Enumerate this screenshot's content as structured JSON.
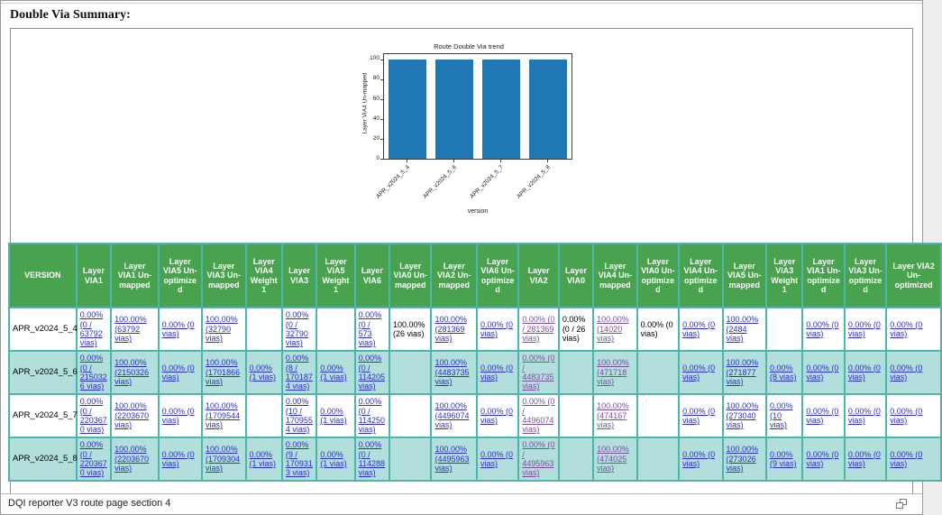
{
  "page": {
    "title": "Double Via Summary:",
    "status_bar": {
      "text": "DQI reporter V3 route page section 4"
    }
  },
  "colors": {
    "header_green": "#49a24d",
    "row_teal": "#b2dfdb",
    "border_teal": "#4db6ac",
    "link_blue": "#2d2dd6",
    "link_visited": "#7e4da1",
    "bar_color": "#1f77b4"
  },
  "chart_data": {
    "type": "bar",
    "title": "Route Double Via trend",
    "xlabel": "version",
    "ylabel": "Layer VIA4 Un-mapped",
    "categories": [
      "APR_v2024_5_4",
      "APR_v2024_5_6",
      "APR_v2024_5_7",
      "APR_v2024_5_8"
    ],
    "values": [
      100,
      100,
      100,
      100
    ],
    "ylim": [
      0,
      105
    ],
    "yticks": [
      0,
      20,
      40,
      60,
      80,
      100
    ],
    "grid": false,
    "legend": null,
    "bar_color": "#1f77b4"
  },
  "table": {
    "columns": [
      "VERSION",
      "Layer VIA1",
      "Layer VIA1 Un-mapped",
      "Layer VIA5 Un-optimized",
      "Layer VIA3 Un-mapped",
      "Layer VIA4 Weight 1",
      "Layer VIA3",
      "Layer VIA5 Weight 1",
      "Layer VIA6",
      "Layer VIA0 Un-mapped",
      "Layer VIA2 Un-mapped",
      "Layer VIA6 Un-optimized",
      "Layer VIA2",
      "Layer VIA0",
      "Layer VIA4 Un-mapped",
      "Layer VIA0 Un-optimized",
      "Layer VIA4 Un-optimized",
      "Layer VIA5 Un-mapped",
      "Layer VIA3 Weight 1",
      "Layer VIA1 Un-optimized",
      "Layer VIA3 Un-optimized",
      "Layer VIA2 Un-optimized"
    ],
    "rows": [
      {
        "version": "APR_v2024_5_4",
        "cells": [
          {
            "text": "0.00% (0 / 63792 vias)",
            "kind": "link"
          },
          {
            "text": "100.00% (63792 vias)",
            "kind": "link"
          },
          {
            "text": "0.00% (0 vias)",
            "kind": "link"
          },
          {
            "text": "100.00% (32790 vias)",
            "kind": "link"
          },
          {
            "text": "",
            "kind": "empty"
          },
          {
            "text": "0.00% (0 / 32790 vias)",
            "kind": "link"
          },
          {
            "text": "",
            "kind": "empty"
          },
          {
            "text": "0.00% (0 / 573 vias)",
            "kind": "link"
          },
          {
            "text": "100.00% (26 vias)",
            "kind": "plain"
          },
          {
            "text": "100.00% (281369 vias)",
            "kind": "link"
          },
          {
            "text": "0.00% (0 vias)",
            "kind": "link"
          },
          {
            "text": "0.00% (0 / 281369 vias)",
            "kind": "visited"
          },
          {
            "text": "0.00% (0 / 26 vias)",
            "kind": "plain"
          },
          {
            "text": "100.00% (14020 vias)",
            "kind": "visited"
          },
          {
            "text": "0.00% (0 vias)",
            "kind": "plain"
          },
          {
            "text": "0.00% (0 vias)",
            "kind": "link"
          },
          {
            "text": "100.00% (2484 vias)",
            "kind": "link"
          },
          {
            "text": "",
            "kind": "empty"
          },
          {
            "text": "0.00% (0 vias)",
            "kind": "link"
          },
          {
            "text": "0.00% (0 vias)",
            "kind": "link"
          },
          {
            "text": "0.00% (0 vias)",
            "kind": "link"
          }
        ]
      },
      {
        "version": "APR_v2024_5_6",
        "cells": [
          {
            "text": "0.00% (0 / 2150326 vias)",
            "kind": "link"
          },
          {
            "text": "100.00% (2150326 vias)",
            "kind": "link"
          },
          {
            "text": "0.00% (0 vias)",
            "kind": "link"
          },
          {
            "text": "100.00% (1701866 vias)",
            "kind": "link"
          },
          {
            "text": "0.00% (1 vias)",
            "kind": "link"
          },
          {
            "text": "0.00% (8 / 1701874 vias)",
            "kind": "link"
          },
          {
            "text": "0.00% (1 vias)",
            "kind": "link"
          },
          {
            "text": "0.00% (0 / 114205 vias)",
            "kind": "link"
          },
          {
            "text": "",
            "kind": "empty"
          },
          {
            "text": "100.00% (4483735 vias)",
            "kind": "link"
          },
          {
            "text": "0.00% (0 vias)",
            "kind": "link"
          },
          {
            "text": "0.00% (0 / 4483735 vias)",
            "kind": "visited"
          },
          {
            "text": "",
            "kind": "empty"
          },
          {
            "text": "100.00% (471718 vias)",
            "kind": "visited"
          },
          {
            "text": "",
            "kind": "empty"
          },
          {
            "text": "0.00% (0 vias)",
            "kind": "link"
          },
          {
            "text": "100.00% (271877 vias)",
            "kind": "link"
          },
          {
            "text": "0.00% (8 vias)",
            "kind": "link"
          },
          {
            "text": "0.00% (0 vias)",
            "kind": "link"
          },
          {
            "text": "0.00% (0 vias)",
            "kind": "link"
          },
          {
            "text": "0.00% (0 vias)",
            "kind": "link"
          }
        ]
      },
      {
        "version": "APR_v2024_5_7",
        "cells": [
          {
            "text": "0.00% (0 / 2203670 vias)",
            "kind": "link"
          },
          {
            "text": "100.00% (2203670 vias)",
            "kind": "link"
          },
          {
            "text": "0.00% (0 vias)",
            "kind": "link"
          },
          {
            "text": "100.00% (1709544 vias)",
            "kind": "link"
          },
          {
            "text": "",
            "kind": "empty"
          },
          {
            "text": "0.00% (10 / 1709554 vias)",
            "kind": "link"
          },
          {
            "text": "0.00% (1 vias)",
            "kind": "link"
          },
          {
            "text": "0.00% (0 / 114250 vias)",
            "kind": "link"
          },
          {
            "text": "",
            "kind": "empty"
          },
          {
            "text": "100.00% (4496074 vias)",
            "kind": "link"
          },
          {
            "text": "0.00% (0 vias)",
            "kind": "link"
          },
          {
            "text": "0.00% (0 / 4496074 vias)",
            "kind": "visited"
          },
          {
            "text": "",
            "kind": "empty"
          },
          {
            "text": "100.00% (474167 vias)",
            "kind": "visited"
          },
          {
            "text": "",
            "kind": "empty"
          },
          {
            "text": "0.00% (0 vias)",
            "kind": "link"
          },
          {
            "text": "100.00% (273040 vias)",
            "kind": "link"
          },
          {
            "text": "0.00% (10 vias)",
            "kind": "link"
          },
          {
            "text": "0.00% (0 vias)",
            "kind": "link"
          },
          {
            "text": "0.00% (0 vias)",
            "kind": "link"
          },
          {
            "text": "0.00% (0 vias)",
            "kind": "link"
          }
        ]
      },
      {
        "version": "APR_v2024_5_8",
        "cells": [
          {
            "text": "0.00% (0 / 2203670 vias)",
            "kind": "link"
          },
          {
            "text": "100.00% (2203670 vias)",
            "kind": "link"
          },
          {
            "text": "0.00% (0 vias)",
            "kind": "link"
          },
          {
            "text": "100.00% (1709304 vias)",
            "kind": "link"
          },
          {
            "text": "0.00% (1 vias)",
            "kind": "link"
          },
          {
            "text": "0.00% (9 / 1709313 vias)",
            "kind": "link"
          },
          {
            "text": "0.00% (1 vias)",
            "kind": "link"
          },
          {
            "text": "0.00% (0 / 114288 vias)",
            "kind": "link"
          },
          {
            "text": "",
            "kind": "empty"
          },
          {
            "text": "100.00% (4495963 vias)",
            "kind": "link"
          },
          {
            "text": "0.00% (0 vias)",
            "kind": "link"
          },
          {
            "text": "0.00% (0 / 4495963 vias)",
            "kind": "visited"
          },
          {
            "text": "",
            "kind": "empty"
          },
          {
            "text": "100.00% (474025 vias)",
            "kind": "visited"
          },
          {
            "text": "",
            "kind": "empty"
          },
          {
            "text": "0.00% (0 vias)",
            "kind": "link"
          },
          {
            "text": "100.00% (273026 vias)",
            "kind": "link"
          },
          {
            "text": "0.00% (9 vias)",
            "kind": "link"
          },
          {
            "text": "0.00% (0 vias)",
            "kind": "link"
          },
          {
            "text": "0.00% (0 vias)",
            "kind": "link"
          },
          {
            "text": "0.00% (0 vias)",
            "kind": "link"
          }
        ]
      }
    ]
  }
}
